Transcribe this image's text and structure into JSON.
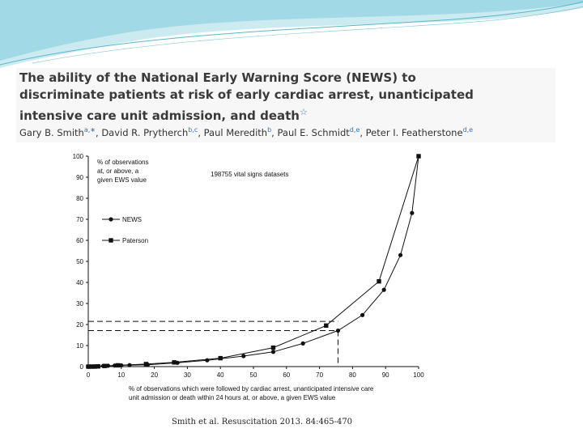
{
  "header": {
    "title": "The ability of the National Early Warning Score (NEWS) to discriminate patients at risk of early cardiac arrest, unanticipated intensive care unit admission, and death",
    "title_mark": "☆",
    "authors": [
      {
        "name": "Gary B. Smith",
        "aff": "a,∗"
      },
      {
        "name": "David R. Prytherch",
        "aff": "b,c"
      },
      {
        "name": "Paul Meredith",
        "aff": "b"
      },
      {
        "name": "Paul E. Schmidt",
        "aff": "d,e"
      },
      {
        "name": "Peter I. Featherstone",
        "aff": "d,e"
      }
    ]
  },
  "citation": "Smith et al. Resuscitation 2013. 84:465-470",
  "colors": {
    "deco_light": "#bfe6ee",
    "deco_mid": "#7fcbdc",
    "deco_line": "#5bb7cc",
    "line": "#111111"
  },
  "chart_data": {
    "type": "line",
    "xlim": [
      0,
      100
    ],
    "ylim": [
      0,
      100
    ],
    "xticks": [
      0,
      10,
      20,
      30,
      40,
      50,
      60,
      70,
      80,
      90,
      100
    ],
    "yticks": [
      0,
      10,
      20,
      30,
      40,
      50,
      60,
      70,
      80,
      90,
      100
    ],
    "ylabel_lines": [
      "% of observations",
      "at, or above, a",
      "given EWS value"
    ],
    "xlabel_lines": [
      "% of observations which were followed by cardiac arrest, unanticipated intensive care",
      "unit admission or death within 24 hours at, or above, a given EWS value"
    ],
    "dataset_note": "198755 vital signs datasets",
    "legend": [
      {
        "label": "NEWS",
        "marker": "circle"
      },
      {
        "label": "Paterson",
        "marker": "square"
      }
    ],
    "series": [
      {
        "name": "NEWS",
        "marker": "circle",
        "points": [
          [
            0,
            0
          ],
          [
            0.5,
            0
          ],
          [
            1,
            0
          ],
          [
            2,
            0.1
          ],
          [
            3,
            0.2
          ],
          [
            4.5,
            0.3
          ],
          [
            6,
            0.4
          ],
          [
            8,
            0.5
          ],
          [
            10,
            0.6
          ],
          [
            12.5,
            0.7
          ],
          [
            18,
            0.9
          ],
          [
            27,
            1.8
          ],
          [
            36,
            3
          ],
          [
            47,
            5
          ],
          [
            56,
            7
          ],
          [
            65,
            11
          ],
          [
            75.6,
            17.1
          ],
          [
            83,
            24.5
          ],
          [
            89.5,
            36.5
          ],
          [
            94.5,
            53
          ],
          [
            98,
            73
          ],
          [
            100,
            100
          ]
        ]
      },
      {
        "name": "Paterson",
        "marker": "square",
        "points": [
          [
            0,
            0
          ],
          [
            1,
            0
          ],
          [
            2,
            0
          ],
          [
            3,
            0.1
          ],
          [
            5,
            0.3
          ],
          [
            9,
            0.6
          ],
          [
            17.5,
            1.2
          ],
          [
            26,
            2
          ],
          [
            40,
            4
          ],
          [
            56,
            9
          ],
          [
            72,
            19.5
          ],
          [
            88,
            40.5
          ],
          [
            100,
            100
          ]
        ]
      }
    ],
    "reference_lines": [
      {
        "x": 75.6,
        "y": 17.1
      },
      {
        "x": 75.6,
        "y": 21.5
      }
    ]
  }
}
